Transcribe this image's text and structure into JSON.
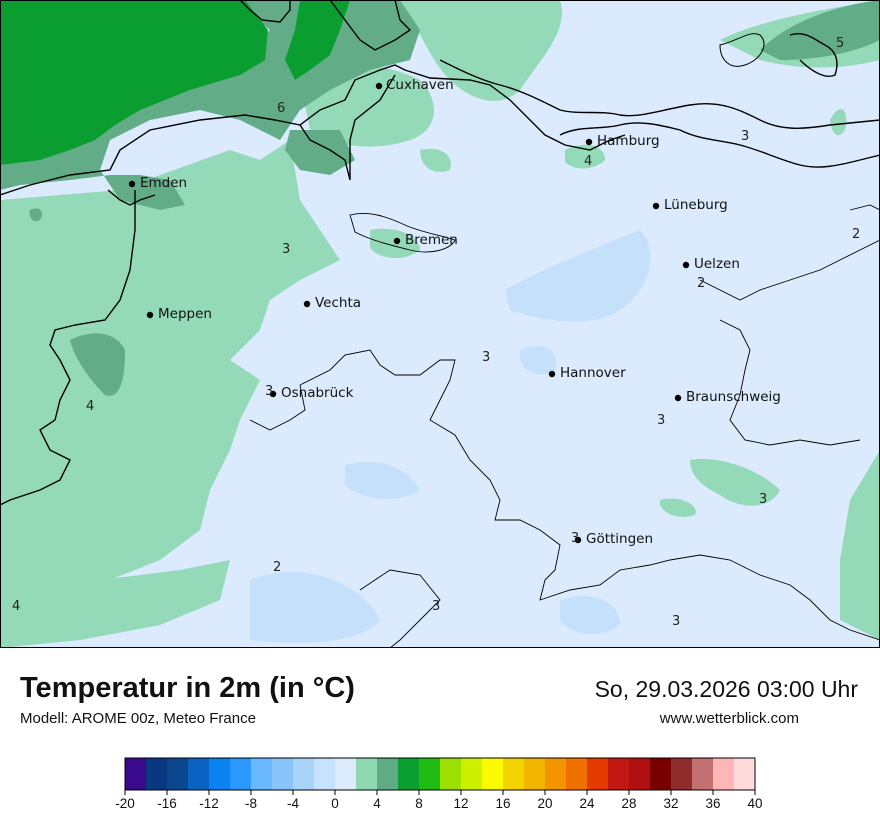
{
  "map": {
    "cities": [
      {
        "name": "Cuxhaven"
      },
      {
        "name": "Hamburg"
      },
      {
        "name": "Emden"
      },
      {
        "name": "Lüneburg"
      },
      {
        "name": "Bremen"
      },
      {
        "name": "Uelzen"
      },
      {
        "name": "Vechta"
      },
      {
        "name": "Meppen"
      },
      {
        "name": "Hannover"
      },
      {
        "name": "Osnabrück"
      },
      {
        "name": "Braunschweig"
      },
      {
        "name": "Göttingen"
      }
    ],
    "isolabels": [
      "5",
      "6",
      "3",
      "4",
      "2",
      "3",
      "3",
      "3",
      "4",
      "3",
      "3",
      "3",
      "2",
      "4",
      "3",
      "3",
      "2",
      "2"
    ]
  },
  "footer": {
    "title": "Temperatur in 2m (in °C)",
    "model": "Modell: AROME 00z, Meteo France",
    "date": "So, 29.03.2026 03:00 Uhr",
    "site": "www.wetterblick.com"
  },
  "legend": {
    "ticks": [
      "-20",
      "-16",
      "-12",
      "-8",
      "-4",
      "0",
      "4",
      "8",
      "12",
      "16",
      "20",
      "24",
      "28",
      "32",
      "36",
      "40"
    ],
    "colors": [
      "#3a0a8c",
      "#0a3880",
      "#0b478f",
      "#0a62c2",
      "#0a82f0",
      "#2a98ff",
      "#6ab8ff",
      "#88c4fa",
      "#a8d4fa",
      "#c6e2fc",
      "#dcecfd",
      "#8ed8b2",
      "#5fab86",
      "#0b9e30",
      "#22bb12",
      "#9be000",
      "#ccf000",
      "#fbfb00",
      "#f3d400",
      "#f3b600",
      "#f49500",
      "#f07100",
      "#e43a00",
      "#c11813",
      "#b01010",
      "#7a0000",
      "#8f2c2c",
      "#c27070",
      "#ffb6b6",
      "#ffdada"
    ],
    "min": -20,
    "max": 40
  }
}
